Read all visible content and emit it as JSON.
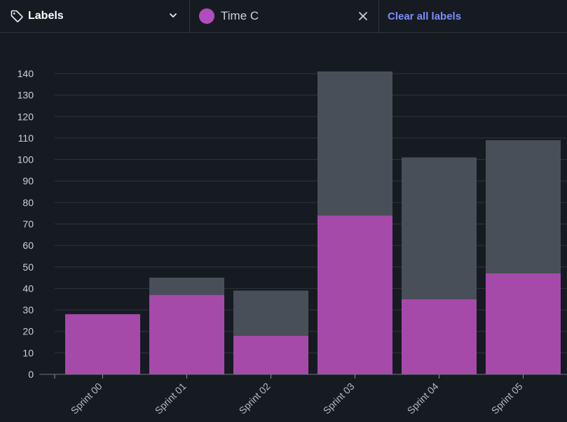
{
  "toolbar": {
    "labels_dropdown": "Labels",
    "selected_label": "Time C",
    "selected_label_color": "#b04dbd",
    "clear_all": "Clear all labels"
  },
  "chart_data": {
    "type": "bar",
    "stacked": true,
    "categories": [
      "Sprint 00",
      "Sprint 01",
      "Sprint 02",
      "Sprint 03",
      "Sprint 04",
      "Sprint 05"
    ],
    "series": [
      {
        "values": [
          28,
          37,
          18,
          74,
          35,
          47
        ],
        "color": "#a64aaa"
      },
      {
        "values": [
          0,
          8,
          21,
          67,
          66,
          62
        ],
        "color": "#484f58"
      }
    ],
    "yticks": [
      0,
      10,
      20,
      30,
      40,
      50,
      60,
      70,
      80,
      90,
      100,
      110,
      120,
      130,
      140
    ],
    "ylim": [
      0,
      140
    ],
    "grid": true,
    "xlabel": "",
    "ylabel": "",
    "title": ""
  }
}
